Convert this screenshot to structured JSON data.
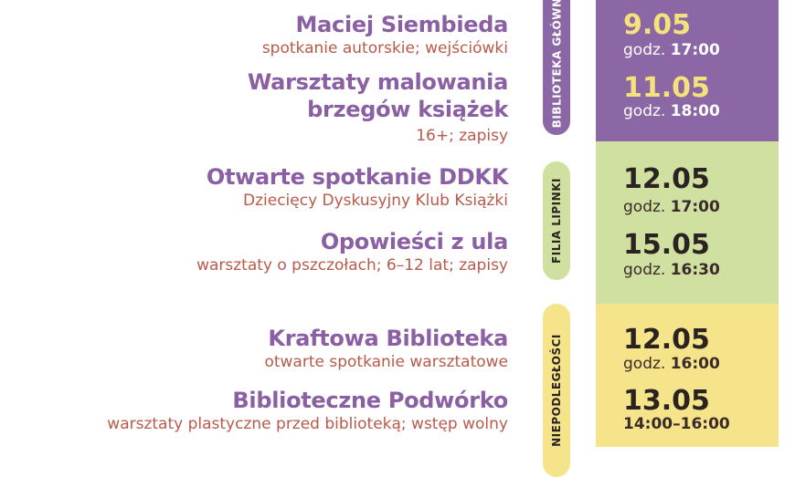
{
  "sections": [
    {
      "tab": "BIBLIOTEKA GŁÓWNA",
      "color": "#8b67a6",
      "events": [
        {
          "title": "Maciej Siembieda",
          "sub": "spotkanie autorskie; wejściówki",
          "date": "9.05",
          "time_prefix": "godz. ",
          "time": "17:00"
        },
        {
          "title_lines": [
            "Warsztaty malowania",
            "brzegów książek"
          ],
          "sub": "16+; zapisy",
          "date": "11.05",
          "time_prefix": "godz. ",
          "time": "18:00"
        }
      ]
    },
    {
      "tab": "FILIA LIPINKI",
      "color": "#cfe0a0",
      "events": [
        {
          "title": "Otwarte spotkanie DDKK",
          "sub": "Dziecięcy Dyskusyjny Klub Książki",
          "date": "12.05",
          "time_prefix": "godz. ",
          "time": "17:00"
        },
        {
          "title": "Opowieści z ula",
          "sub": "warsztaty o pszczołach; 6–12 lat; zapisy",
          "date": "15.05",
          "time_prefix": "godz. ",
          "time": "16:30"
        }
      ]
    },
    {
      "tab": "NIEPODLEGŁOŚCI",
      "color": "#f5e48a",
      "events": [
        {
          "title": "Kraftowa Biblioteka",
          "sub": "otwarte spotkanie warsztatowe",
          "date": "12.05",
          "time_prefix": "godz. ",
          "time": "16:00"
        },
        {
          "title": "Biblioteczne Podwórko",
          "sub": "warsztaty plastyczne przed biblioteką; wstęp wolny",
          "date": "13.05",
          "time_prefix": "",
          "time": "14:00–16:00"
        }
      ]
    }
  ]
}
